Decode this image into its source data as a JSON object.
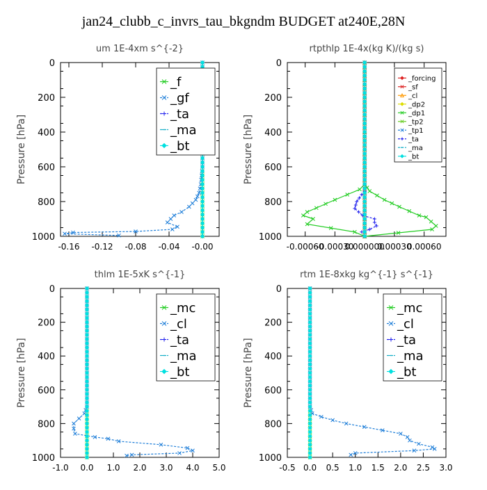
{
  "figure": {
    "suptitle": "jan24_clubb_c_invrs_tau_bkgndm  BUDGET at240E,28N"
  },
  "chart_data": [
    {
      "type": "line",
      "title": "um   1E-4xm s^{-2}",
      "ylabel": "Pressure [hPa]",
      "xlim": [
        -0.17,
        0.02
      ],
      "ylim": [
        1000,
        0
      ],
      "y_inverted": true,
      "xticks": [
        "-0.16",
        "-0.12",
        "-0.08",
        "-0.04",
        "-0.00"
      ],
      "xtick_values": [
        -0.16,
        -0.12,
        -0.08,
        -0.04,
        0.0
      ],
      "yticks": [
        "0",
        "200",
        "400",
        "600",
        "800",
        "1000"
      ],
      "ytick_values": [
        0,
        200,
        400,
        600,
        800,
        1000
      ],
      "legend": {
        "position": "top-right",
        "font": "large"
      },
      "series": [
        {
          "name": "_f",
          "color": "#22cc22",
          "marker": "x",
          "dashed": false,
          "points": [
            [
              0.0,
              0
            ],
            [
              0.0,
              100
            ],
            [
              0.0,
              200
            ],
            [
              0.0,
              300
            ],
            [
              0.0,
              400
            ],
            [
              0.0,
              500
            ],
            [
              0.0,
              600
            ],
            [
              0.0,
              700
            ],
            [
              0.0,
              800
            ],
            [
              0.0,
              900
            ],
            [
              0.0,
              1000
            ]
          ]
        },
        {
          "name": "_gf",
          "color": "#1e7ed8",
          "marker": "x",
          "dashed": true,
          "points": [
            [
              0.0,
              0
            ],
            [
              0.0,
              100
            ],
            [
              0.0,
              200
            ],
            [
              -0.002,
              230
            ],
            [
              -0.003,
              260
            ],
            [
              -0.001,
              300
            ],
            [
              0.0,
              400
            ],
            [
              0.0,
              500
            ],
            [
              0.0,
              600
            ],
            [
              -0.002,
              700
            ],
            [
              -0.004,
              750
            ],
            [
              -0.008,
              790
            ],
            [
              -0.016,
              830
            ],
            [
              -0.025,
              860
            ],
            [
              -0.034,
              880
            ],
            [
              -0.038,
              900
            ],
            [
              -0.042,
              920
            ],
            [
              -0.03,
              945
            ],
            [
              -0.036,
              960
            ],
            [
              -0.08,
              972
            ],
            [
              -0.155,
              978
            ],
            [
              -0.165,
              985
            ],
            [
              -0.1,
              995
            ]
          ]
        },
        {
          "name": "_ta",
          "color": "#2222ee",
          "marker": "+",
          "dashed": true,
          "points": [
            [
              0.0,
              0
            ],
            [
              0.0,
              500
            ],
            [
              0.0,
              1000
            ]
          ]
        },
        {
          "name": "_ma",
          "color": "#1ab0c8",
          "marker": "dash",
          "dashed": true,
          "points": [
            [
              0.0,
              0
            ],
            [
              0.0,
              1000
            ]
          ]
        },
        {
          "name": "_bt",
          "color": "#00e0e0",
          "marker": "diamond",
          "dashed": false,
          "points": [
            [
              0.0,
              0
            ],
            [
              0.0,
              1000
            ]
          ]
        }
      ]
    },
    {
      "type": "line",
      "title": "rtpthlp   1E-4x(kg K)/(kg s)",
      "ylabel": "Pressure [hPa]",
      "xlim": [
        -0.00078,
        0.00082
      ],
      "ylim": [
        1000,
        0
      ],
      "y_inverted": true,
      "xticks": [
        "-0.00060",
        "-0.00030",
        "0.000000",
        "0.00030",
        "0.00060"
      ],
      "xtick_values": [
        -0.0006,
        -0.0003,
        0.0,
        0.0003,
        0.0006
      ],
      "yticks": [
        "0",
        "200",
        "400",
        "600",
        "800",
        "1000"
      ],
      "ytick_values": [
        0,
        200,
        400,
        600,
        800,
        1000
      ],
      "legend": {
        "position": "top-right",
        "font": "small"
      },
      "series": [
        {
          "name": "_forcing",
          "color": "#dd2222",
          "marker": "diamond",
          "dashed": false,
          "points": [
            [
              0.0,
              0
            ],
            [
              0.0,
              1000
            ]
          ]
        },
        {
          "name": "_sf",
          "color": "#dd2222",
          "marker": "x",
          "dashed": false,
          "points": [
            [
              0.0,
              0
            ],
            [
              0.0,
              1000
            ]
          ]
        },
        {
          "name": "_cl",
          "color": "#ff9900",
          "marker": "triangle",
          "dashed": false,
          "points": [
            [
              0.0,
              0
            ],
            [
              0.0,
              1000
            ]
          ]
        },
        {
          "name": "_dp2",
          "color": "#dddd00",
          "marker": "diamond",
          "dashed": false,
          "points": [
            [
              0.0,
              0
            ],
            [
              0.0,
              1000
            ]
          ]
        },
        {
          "name": "_dp1",
          "color": "#22cc22",
          "marker": "x",
          "dashed": false,
          "points": [
            [
              0.0,
              0
            ],
            [
              0.0,
              700
            ],
            [
              -5e-05,
              730
            ],
            [
              -0.0003,
              790
            ],
            [
              -0.00058,
              860
            ],
            [
              -0.00062,
              880
            ],
            [
              -0.00052,
              900
            ],
            [
              -0.00058,
              930
            ],
            [
              -0.0001,
              975
            ],
            [
              0.0,
              1000
            ],
            [
              0.00068,
              960
            ],
            [
              0.00072,
              940
            ],
            [
              0.00062,
              890
            ],
            [
              0.00055,
              880
            ],
            [
              0.00035,
              830
            ],
            [
              0.0002,
              790
            ],
            [
              5e-05,
              740
            ],
            [
              0.0,
              700
            ]
          ]
        },
        {
          "name": "_tp2",
          "color": "#66cc22",
          "marker": "x",
          "dashed": false,
          "points": [
            [
              0.0,
              0
            ],
            [
              0.0,
              1000
            ]
          ]
        },
        {
          "name": "_tp1",
          "color": "#1e7ed8",
          "marker": "x",
          "dashed": true,
          "points": [
            [
              0.0,
              0
            ],
            [
              0.0,
              1000
            ]
          ]
        },
        {
          "name": "_ta",
          "color": "#2222ee",
          "marker": "+",
          "dashed": true,
          "points": [
            [
              0.0,
              740
            ],
            [
              -3e-05,
              760
            ],
            [
              -8e-05,
              800
            ],
            [
              -0.0001,
              840
            ],
            [
              -2e-05,
              880
            ],
            [
              0.0001,
              900
            ],
            [
              0.0001,
              920
            ],
            [
              0.00012,
              940
            ],
            [
              5e-05,
              960
            ],
            [
              -3e-05,
              975
            ]
          ]
        },
        {
          "name": "_ma",
          "color": "#1ab0c8",
          "marker": "dash",
          "dashed": true,
          "points": [
            [
              0.0,
              0
            ],
            [
              0.0,
              1000
            ]
          ]
        },
        {
          "name": "_bt",
          "color": "#00e0e0",
          "marker": "diamond",
          "dashed": false,
          "points": [
            [
              0.0,
              0
            ],
            [
              0.0,
              1000
            ]
          ]
        }
      ]
    },
    {
      "type": "line",
      "title": "thlm   1E-5xK s^{-1}",
      "ylabel": "Pressure [hPa]",
      "xlim": [
        -1.0,
        5.0
      ],
      "ylim": [
        1000,
        0
      ],
      "y_inverted": true,
      "xticks": [
        "-1.0",
        "0.0",
        "1.0",
        "2.0",
        "3.0",
        "4.0",
        "5.0"
      ],
      "xtick_values": [
        -1,
        0,
        1,
        2,
        3,
        4,
        5
      ],
      "yticks": [
        "0",
        "200",
        "400",
        "600",
        "800",
        "1000"
      ],
      "ytick_values": [
        0,
        200,
        400,
        600,
        800,
        1000
      ],
      "legend": {
        "position": "top-right",
        "font": "large"
      },
      "series": [
        {
          "name": "_mc",
          "color": "#22cc22",
          "marker": "x",
          "dashed": false,
          "points": [
            [
              0.0,
              0
            ],
            [
              0.0,
              200
            ],
            [
              0.0,
              400
            ],
            [
              0.0,
              600
            ],
            [
              0.0,
              800
            ],
            [
              0.0,
              1000
            ]
          ]
        },
        {
          "name": "_cl",
          "color": "#1e7ed8",
          "marker": "x",
          "dashed": true,
          "points": [
            [
              0.0,
              0
            ],
            [
              0.0,
              700
            ],
            [
              -0.1,
              740
            ],
            [
              -0.3,
              770
            ],
            [
              -0.5,
              800
            ],
            [
              -0.5,
              830
            ],
            [
              -0.45,
              860
            ],
            [
              0.3,
              880
            ],
            [
              0.8,
              890
            ],
            [
              1.2,
              905
            ],
            [
              2.8,
              925
            ],
            [
              3.8,
              945
            ],
            [
              4.0,
              960
            ],
            [
              3.5,
              975
            ],
            [
              1.7,
              985
            ],
            [
              1.5,
              990
            ]
          ]
        },
        {
          "name": "_ta",
          "color": "#2222ee",
          "marker": "+",
          "dashed": true,
          "points": [
            [
              0.0,
              0
            ],
            [
              0.0,
              1000
            ]
          ]
        },
        {
          "name": "_ma",
          "color": "#1ab0c8",
          "marker": "dash",
          "dashed": true,
          "points": [
            [
              0.0,
              0
            ],
            [
              0.0,
              1000
            ]
          ]
        },
        {
          "name": "_bt",
          "color": "#00e0e0",
          "marker": "diamond",
          "dashed": false,
          "points": [
            [
              0.0,
              0
            ],
            [
              0.0,
              1000
            ]
          ]
        }
      ]
    },
    {
      "type": "line",
      "title": "rtm   1E-8xkg kg^{-1} s^{-1}",
      "ylabel": "Pressure [hPa]",
      "xlim": [
        -0.5,
        3.0
      ],
      "ylim": [
        1000,
        0
      ],
      "y_inverted": true,
      "xticks": [
        "-0.5",
        "0.0",
        "0.5",
        "1.0",
        "1.5",
        "2.0",
        "2.5",
        "3.0"
      ],
      "xtick_values": [
        -0.5,
        0,
        0.5,
        1.0,
        1.5,
        2.0,
        2.5,
        3.0
      ],
      "yticks": [
        "0",
        "200",
        "400",
        "600",
        "800",
        "1000"
      ],
      "ytick_values": [
        0,
        200,
        400,
        600,
        800,
        1000
      ],
      "legend": {
        "position": "top-right",
        "font": "large"
      },
      "series": [
        {
          "name": "_mc",
          "color": "#22cc22",
          "marker": "x",
          "dashed": false,
          "points": [
            [
              0.0,
              0
            ],
            [
              0.0,
              200
            ],
            [
              0.0,
              400
            ],
            [
              0.0,
              600
            ],
            [
              0.0,
              800
            ],
            [
              0.0,
              1000
            ]
          ]
        },
        {
          "name": "_cl",
          "color": "#1e7ed8",
          "marker": "x",
          "dashed": true,
          "points": [
            [
              0.0,
              0
            ],
            [
              0.0,
              700
            ],
            [
              0.05,
              740
            ],
            [
              0.25,
              760
            ],
            [
              0.5,
              780
            ],
            [
              0.8,
              800
            ],
            [
              1.2,
              820
            ],
            [
              1.6,
              840
            ],
            [
              2.0,
              860
            ],
            [
              2.15,
              880
            ],
            [
              2.2,
              900
            ],
            [
              2.4,
              920
            ],
            [
              2.7,
              940
            ],
            [
              2.75,
              950
            ],
            [
              2.3,
              960
            ],
            [
              1.0,
              975
            ],
            [
              0.9,
              985
            ]
          ]
        },
        {
          "name": "_ta",
          "color": "#2222ee",
          "marker": "+",
          "dashed": true,
          "points": [
            [
              0.0,
              0
            ],
            [
              0.0,
              1000
            ]
          ]
        },
        {
          "name": "_ma",
          "color": "#1ab0c8",
          "marker": "dash",
          "dashed": true,
          "points": [
            [
              0.0,
              0
            ],
            [
              0.0,
              1000
            ]
          ]
        },
        {
          "name": "_bt",
          "color": "#00e0e0",
          "marker": "diamond",
          "dashed": false,
          "points": [
            [
              0.0,
              0
            ],
            [
              0.0,
              1000
            ]
          ]
        }
      ]
    }
  ]
}
